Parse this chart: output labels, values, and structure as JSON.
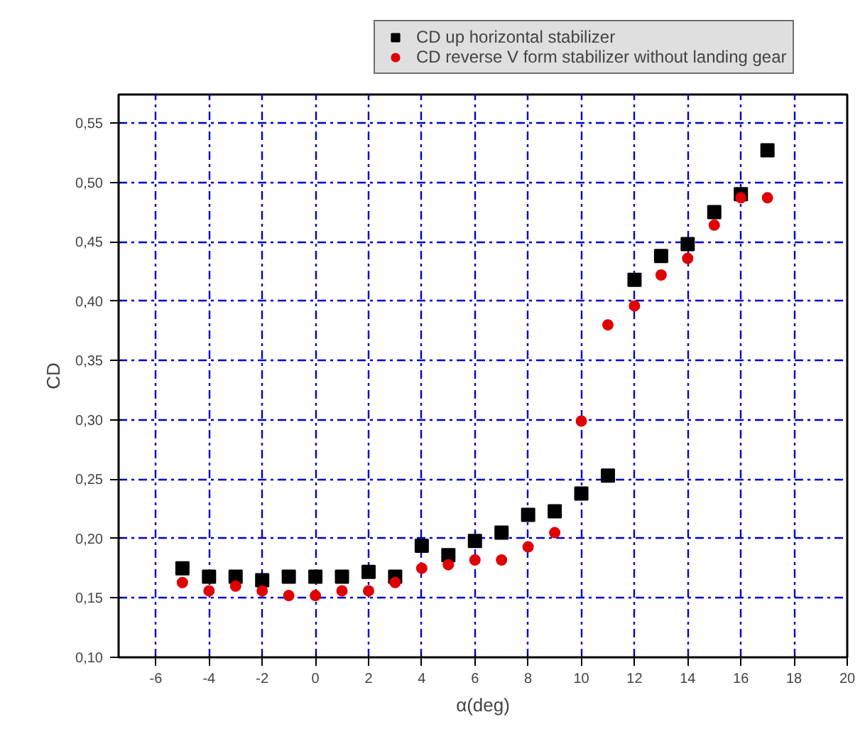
{
  "chart_data": {
    "type": "scatter",
    "xlabel": "α(deg)",
    "ylabel": "CD",
    "x": [
      -5,
      -4,
      -3,
      -2,
      -1,
      0,
      1,
      2,
      3,
      4,
      5,
      6,
      7,
      8,
      9,
      10,
      11,
      12,
      13,
      14,
      15,
      16,
      17
    ],
    "series": [
      {
        "name": "CD up horizontal stabilizer",
        "color": "#000000",
        "marker": "square",
        "values": [
          0.175,
          0.168,
          0.168,
          0.165,
          0.168,
          0.168,
          0.168,
          0.172,
          0.168,
          0.194,
          0.186,
          0.198,
          0.205,
          0.22,
          0.223,
          0.238,
          0.253,
          0.418,
          0.438,
          0.448,
          0.475,
          0.49,
          0.527
        ]
      },
      {
        "name": "CD reverse V form stabilizer without landing gear",
        "color": "#e00000",
        "marker": "circle",
        "values": [
          0.163,
          0.156,
          0.16,
          0.156,
          0.152,
          0.152,
          0.156,
          0.156,
          0.163,
          0.175,
          0.178,
          0.182,
          0.182,
          0.193,
          0.205,
          0.299,
          0.38,
          0.396,
          0.422,
          0.436,
          0.464,
          0.487,
          0.487
        ]
      }
    ],
    "xlim": [
      -7.4,
      20
    ],
    "ylim": [
      0.1,
      0.574
    ],
    "xticks": [
      -6,
      -4,
      -2,
      0,
      2,
      4,
      6,
      8,
      10,
      12,
      14,
      16,
      18,
      20
    ],
    "yticks": [
      {
        "value": 0.1,
        "label": "0,10"
      },
      {
        "value": 0.15,
        "label": "0,15"
      },
      {
        "value": 0.2,
        "label": "0,20"
      },
      {
        "value": 0.25,
        "label": "0,25"
      },
      {
        "value": 0.3,
        "label": "0,30"
      },
      {
        "value": 0.35,
        "label": "0,35"
      },
      {
        "value": 0.4,
        "label": "0,40"
      },
      {
        "value": 0.45,
        "label": "0,45"
      },
      {
        "value": 0.5,
        "label": "0,50"
      },
      {
        "value": 0.55,
        "label": "0,55"
      }
    ],
    "grid": true,
    "legend": "top"
  }
}
